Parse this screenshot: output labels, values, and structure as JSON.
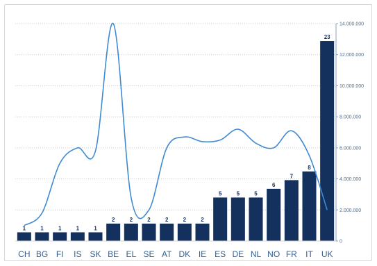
{
  "chart_data": {
    "type": "bar",
    "categories": [
      "CH",
      "BG",
      "FI",
      "IS",
      "SK",
      "BE",
      "EL",
      "SE",
      "AT",
      "DK",
      "IE",
      "ES",
      "DE",
      "NL",
      "NO",
      "FR",
      "IT",
      "UK"
    ],
    "series": [
      {
        "type": "bar",
        "values": [
          1,
          1,
          1,
          1,
          1,
          2,
          2,
          2,
          2,
          2,
          2,
          5,
          5,
          5,
          6,
          7,
          8,
          23
        ],
        "value_labels": [
          "1",
          "1",
          "1",
          "1",
          "1",
          "2",
          "2",
          "2",
          "2",
          "2",
          "2",
          "5",
          "5",
          "5",
          "6",
          "7",
          "8",
          "23"
        ],
        "color": "#14315e"
      },
      {
        "type": "line",
        "values": [
          1000000,
          1800000,
          5000000,
          6000000,
          5800000,
          14000000,
          2800000,
          2000000,
          6000000,
          6700000,
          6400000,
          6500000,
          7200000,
          6300000,
          6000000,
          7100000,
          5500000,
          2000000
        ],
        "color": "#3f8ad0",
        "axis": "right"
      }
    ],
    "right_axis": {
      "ylim": [
        0,
        14000000
      ],
      "ticks": [
        0,
        2000000,
        4000000,
        6000000,
        8000000,
        10000000,
        12000000,
        14000000
      ],
      "tick_labels": [
        "0",
        "2.000.000",
        "4.000.000",
        "6.000.000",
        "8.000.000",
        "10.000.000",
        "12.000.000",
        "14.000.000"
      ]
    },
    "bar_scale_max": 25,
    "grid": true
  }
}
